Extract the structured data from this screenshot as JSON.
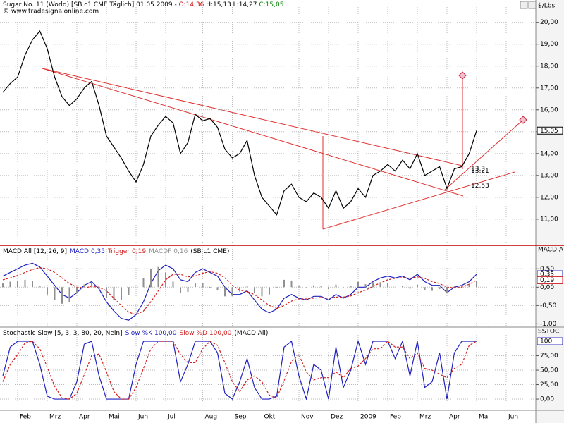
{
  "chart_data": [
    {
      "type": "line",
      "header": {
        "symbol": "Sugar No. 11 (World) [SB c1 CME  Täglich] 01.05.2009 -",
        "open": "O:14,36",
        "hlc": "H:15,13 L:14,27",
        "close": "C:15,05",
        "copyright": "© www.tradesignalonline.com"
      },
      "axis_title": "$/Lbs",
      "ylim": [
        9.9,
        20.7
      ],
      "yticks": [
        {
          "value": 11,
          "label": "11,00"
        },
        {
          "value": 12,
          "label": "12,00"
        },
        {
          "value": 13,
          "label": "13,00"
        },
        {
          "value": 14,
          "label": "14,00"
        },
        {
          "value": 15,
          "label": "15,00"
        },
        {
          "value": 16,
          "label": "16,00"
        },
        {
          "value": 17,
          "label": "17,00"
        },
        {
          "value": 18,
          "label": "18,00"
        },
        {
          "value": 19,
          "label": "19,00"
        },
        {
          "value": 20,
          "label": "20,00"
        }
      ],
      "series": [
        {
          "name": "Sugar No. 11",
          "color": "#000000",
          "last_label": "15,05",
          "values": [
            16.8,
            17.2,
            17.5,
            18.5,
            19.2,
            19.6,
            18.8,
            17.5,
            16.6,
            16.2,
            16.5,
            17.0,
            17.3,
            16.2,
            14.8,
            14.3,
            13.8,
            13.2,
            12.7,
            13.5,
            14.8,
            15.3,
            15.7,
            15.4,
            14.0,
            14.5,
            15.8,
            15.5,
            15.6,
            15.2,
            14.2,
            13.8,
            14.0,
            14.6,
            13.0,
            12.0,
            11.6,
            11.2,
            12.3,
            12.6,
            12.0,
            11.8,
            12.2,
            12.0,
            11.5,
            12.3,
            11.5,
            11.8,
            12.4,
            12.0,
            13.0,
            13.2,
            13.5,
            13.2,
            13.7,
            13.3,
            14.0,
            13.0,
            13.2,
            13.4,
            12.4,
            13.3,
            13.4,
            14.0,
            15.05,
            null,
            null,
            null,
            null,
            null,
            null,
            null
          ]
        }
      ],
      "annotations": [
        {
          "value": 13.3,
          "label": "13,3"
        },
        {
          "value": 13.21,
          "label": "13,21"
        },
        {
          "value": 12.53,
          "label": "12,53"
        }
      ]
    },
    {
      "type": "line",
      "title": "MACD All [12, 26, 9]",
      "title_suffix": "(SB c1 CME)",
      "axis_title": "MACD A",
      "ylim": [
        -1.05,
        1.1
      ],
      "yticks": [
        {
          "value": -1,
          "label": "-1,00"
        },
        {
          "value": -0.5,
          "label": "-0,50"
        },
        {
          "value": 0,
          "label": "0,00"
        },
        {
          "value": 0.5,
          "label": "0,50"
        }
      ],
      "series": [
        {
          "name": "MACD",
          "legend_value": "0,35",
          "color": "#2020c0",
          "last_label": "0,35",
          "values": [
            0.3,
            0.4,
            0.5,
            0.6,
            0.65,
            0.55,
            0.3,
            0.05,
            -0.2,
            -0.3,
            -0.15,
            0.05,
            0.15,
            -0.05,
            -0.4,
            -0.65,
            -0.85,
            -0.9,
            -0.75,
            -0.4,
            0.1,
            0.45,
            0.6,
            0.5,
            0.2,
            0.15,
            0.4,
            0.5,
            0.4,
            0.3,
            0.0,
            -0.2,
            -0.2,
            -0.1,
            -0.35,
            -0.6,
            -0.7,
            -0.6,
            -0.3,
            -0.2,
            -0.3,
            -0.35,
            -0.25,
            -0.25,
            -0.35,
            -0.2,
            -0.3,
            -0.2,
            0.0,
            0.0,
            0.15,
            0.25,
            0.3,
            0.25,
            0.3,
            0.2,
            0.35,
            0.15,
            0.05,
            0.05,
            -0.15,
            0.0,
            0.05,
            0.15,
            0.35,
            null,
            null,
            null,
            null,
            null,
            null,
            null
          ]
        },
        {
          "name": "Trigger",
          "legend_value": "0,19",
          "color": "#d02020",
          "dashed": true,
          "last_label": "0,19",
          "values": [
            0.2,
            0.25,
            0.32,
            0.4,
            0.48,
            0.53,
            0.5,
            0.4,
            0.25,
            0.1,
            0.0,
            -0.02,
            0.02,
            0.0,
            -0.1,
            -0.3,
            -0.5,
            -0.68,
            -0.75,
            -0.65,
            -0.4,
            -0.1,
            0.2,
            0.35,
            0.35,
            0.28,
            0.3,
            0.38,
            0.42,
            0.38,
            0.25,
            0.05,
            -0.08,
            -0.12,
            -0.2,
            -0.35,
            -0.5,
            -0.58,
            -0.5,
            -0.38,
            -0.32,
            -0.32,
            -0.3,
            -0.28,
            -0.3,
            -0.27,
            -0.27,
            -0.24,
            -0.15,
            -0.08,
            0.02,
            0.12,
            0.2,
            0.24,
            0.26,
            0.24,
            0.28,
            0.24,
            0.15,
            0.1,
            0.0,
            -0.02,
            0.0,
            0.08,
            0.19,
            null,
            null,
            null,
            null,
            null,
            null,
            null
          ]
        },
        {
          "name": "MACDF",
          "legend_value": "0,16",
          "color": "#909090",
          "type": "bar",
          "values": [
            0.1,
            0.15,
            0.18,
            0.2,
            0.17,
            0.02,
            -0.2,
            -0.35,
            -0.45,
            -0.4,
            -0.15,
            0.07,
            0.13,
            -0.05,
            -0.3,
            -0.35,
            -0.35,
            -0.22,
            0.0,
            0.25,
            0.5,
            0.55,
            0.4,
            0.15,
            -0.15,
            -0.13,
            0.1,
            0.12,
            -0.02,
            -0.08,
            -0.25,
            -0.25,
            -0.12,
            0.02,
            -0.15,
            -0.25,
            -0.2,
            -0.02,
            0.2,
            0.18,
            0.02,
            -0.03,
            0.05,
            0.03,
            -0.05,
            0.07,
            -0.03,
            0.04,
            0.15,
            0.08,
            0.13,
            0.13,
            0.1,
            0.01,
            0.04,
            -0.04,
            0.07,
            -0.09,
            -0.1,
            -0.05,
            -0.15,
            0.02,
            0.05,
            0.07,
            0.16,
            null,
            null,
            null,
            null,
            null,
            null,
            null
          ]
        }
      ]
    },
    {
      "type": "line",
      "title": "Stochastic Slow [5, 3, 3, 80, 20, Nein]",
      "title_suffix": "(MACD All)",
      "axis_title": "SSTOC",
      "ylim": [
        -17,
        122
      ],
      "yticks": [
        {
          "value": 0,
          "label": "0,00"
        },
        {
          "value": 25,
          "label": "25,00"
        },
        {
          "value": 50,
          "label": "50,00"
        },
        {
          "value": 75,
          "label": "75,00"
        }
      ],
      "categories": [
        null,
        null,
        "Feb",
        null,
        null,
        null,
        "Mrz",
        null,
        null,
        null,
        "Apr",
        null,
        null,
        null,
        "Mai",
        null,
        null,
        null,
        "Jun",
        null,
        null,
        null,
        "Jul",
        null,
        null,
        null,
        null,
        "Aug",
        null,
        null,
        null,
        "Sep",
        null,
        null,
        null,
        "Okt",
        null,
        null,
        null,
        null,
        "Nov",
        null,
        null,
        null,
        "Dez",
        null,
        null,
        null,
        "2009",
        null,
        null,
        null,
        "Feb",
        null,
        null,
        null,
        "Mrz",
        null,
        null,
        null,
        "Apr",
        null,
        null,
        null,
        "Mai",
        null,
        null,
        null,
        "Jun",
        null,
        null,
        null
      ],
      "series": [
        {
          "name": "Slow %K",
          "legend_value": "100,00",
          "color": "#2020c0",
          "last_label": "100",
          "values": [
            40,
            90,
            100,
            100,
            100,
            60,
            5,
            0,
            0,
            0,
            30,
            95,
            100,
            40,
            0,
            0,
            0,
            0,
            60,
            100,
            100,
            100,
            100,
            100,
            30,
            60,
            100,
            100,
            100,
            80,
            10,
            0,
            30,
            70,
            20,
            0,
            0,
            5,
            90,
            100,
            40,
            0,
            60,
            50,
            0,
            90,
            20,
            50,
            100,
            60,
            100,
            100,
            100,
            70,
            100,
            40,
            100,
            20,
            30,
            80,
            0,
            80,
            100,
            100,
            100,
            null,
            null,
            null,
            null,
            null,
            null,
            null
          ]
        },
        {
          "name": "Slow %D",
          "legend_value": "100,00",
          "color": "#d02020",
          "dashed": true,
          "values": [
            30,
            60,
            77,
            97,
            100,
            87,
            55,
            22,
            2,
            0,
            10,
            42,
            75,
            78,
            47,
            13,
            0,
            0,
            20,
            53,
            87,
            100,
            100,
            100,
            77,
            63,
            63,
            87,
            100,
            93,
            63,
            30,
            13,
            33,
            40,
            30,
            7,
            2,
            32,
            65,
            77,
            47,
            33,
            37,
            37,
            47,
            37,
            53,
            57,
            70,
            87,
            87,
            100,
            90,
            90,
            70,
            80,
            53,
            50,
            43,
            37,
            53,
            60,
            93,
            100,
            null,
            null,
            null,
            null,
            null,
            null,
            null
          ]
        }
      ]
    }
  ]
}
